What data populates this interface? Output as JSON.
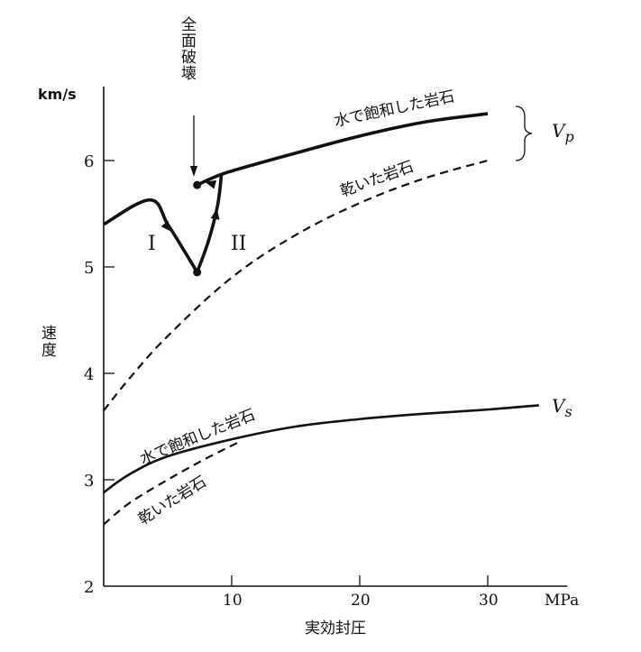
{
  "chart_data": {
    "type": "line",
    "title": "",
    "xlabel": "実効封圧",
    "xunit": "MPa",
    "ylabel": "速度",
    "yunit": "km/s",
    "xlim": [
      0,
      36
    ],
    "ylim": [
      2,
      6.7
    ],
    "xticks": [
      10,
      20,
      30
    ],
    "yticks": [
      2,
      3,
      4,
      5,
      6
    ],
    "grid": false,
    "series": [
      {
        "name": "水で飽和した岩石",
        "group": "Vp",
        "style": "solid-thick",
        "segments": [
          {
            "label": "I",
            "points": [
              [
                0,
                5.4
              ],
              [
                3.6,
                5.63
              ],
              [
                5,
                5.4
              ],
              [
                6.3,
                5.15
              ],
              [
                7.3,
                4.95
              ]
            ]
          },
          {
            "label": "II",
            "points": [
              [
                7.3,
                4.95
              ],
              [
                8.2,
                5.25
              ],
              [
                8.9,
                5.58
              ],
              [
                9.2,
                5.87
              ]
            ]
          },
          {
            "label": "",
            "points": [
              [
                7.3,
                5.77
              ],
              [
                9.2,
                5.87
              ],
              [
                12,
                5.97
              ],
              [
                15,
                6.07
              ],
              [
                20,
                6.23
              ],
              [
                25,
                6.36
              ],
              [
                30,
                6.44
              ]
            ]
          }
        ]
      },
      {
        "name": "乾いた岩石",
        "group": "Vp",
        "style": "dashed",
        "segments": [
          {
            "label": "",
            "points": [
              [
                0,
                3.65
              ],
              [
                2,
                3.95
              ],
              [
                5,
                4.35
              ],
              [
                10,
                4.9
              ],
              [
                15,
                5.3
              ],
              [
                20,
                5.6
              ],
              [
                25,
                5.83
              ],
              [
                30,
                6.0
              ]
            ]
          }
        ]
      },
      {
        "name": "水で飽和した岩石",
        "group": "Vs",
        "style": "solid",
        "segments": [
          {
            "label": "",
            "points": [
              [
                0,
                2.88
              ],
              [
                2,
                3.05
              ],
              [
                5,
                3.22
              ],
              [
                10,
                3.38
              ],
              [
                15,
                3.5
              ],
              [
                20,
                3.57
              ],
              [
                25,
                3.62
              ],
              [
                30,
                3.66
              ],
              [
                34,
                3.7
              ]
            ]
          }
        ]
      },
      {
        "name": "乾いた岩石",
        "group": "Vs",
        "style": "dashed",
        "segments": [
          {
            "label": "",
            "points": [
              [
                0,
                2.58
              ],
              [
                2,
                2.78
              ],
              [
                5,
                3.0
              ],
              [
                8,
                3.2
              ],
              [
                10.5,
                3.35
              ]
            ]
          }
        ]
      }
    ],
    "markers": [
      [
        7.3,
        4.95
      ],
      [
        7.3,
        5.77
      ]
    ],
    "annotations": {
      "failure": "全面破壊",
      "stage1": "I",
      "stage2": "II",
      "vp": "V",
      "vp_sub": "p",
      "vs": "V",
      "vs_sub": "s"
    }
  }
}
